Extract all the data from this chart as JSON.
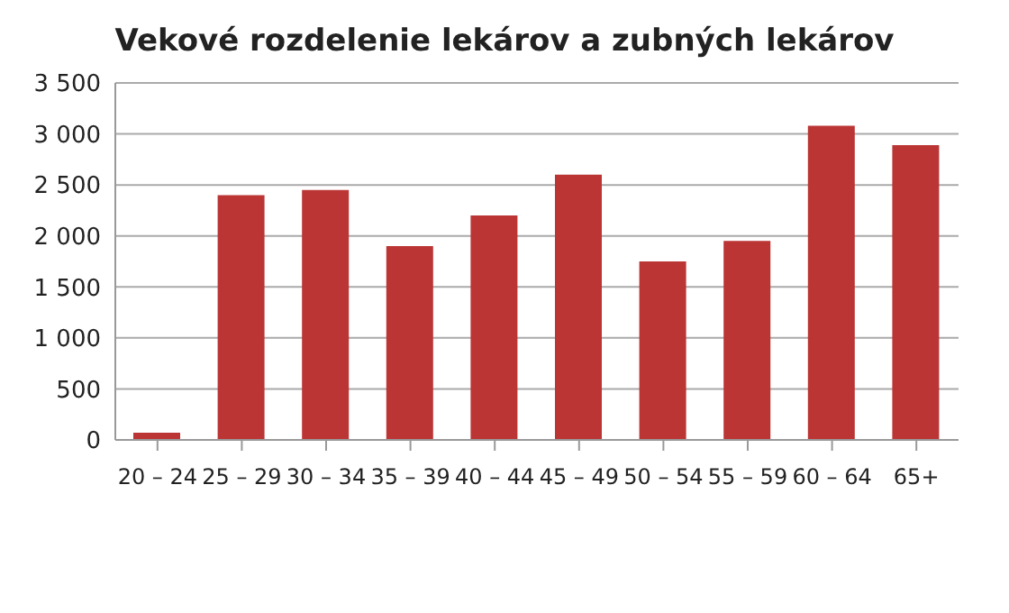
{
  "chart_data": {
    "type": "bar",
    "title": "Vekové rozdelenie lekárov a zubných lekárov",
    "categories": [
      "20 – 24",
      "25 – 29",
      "30 – 34",
      "35 – 39",
      "40 – 44",
      "45 – 49",
      "50 – 54",
      "55 – 59",
      "60 – 64",
      "65+"
    ],
    "values": [
      70,
      2400,
      2450,
      1900,
      2200,
      2600,
      1750,
      1950,
      3080,
      2890
    ],
    "color": "#bb3535",
    "ylim": [
      0,
      3500
    ],
    "yticks": [
      {
        "value": 0,
        "label": "0"
      },
      {
        "value": 500,
        "label": "500"
      },
      {
        "value": 1000,
        "label": "1 000"
      },
      {
        "value": 1500,
        "label": "1 500"
      },
      {
        "value": 2000,
        "label": "2 000"
      },
      {
        "value": 2500,
        "label": "2 500"
      },
      {
        "value": 3000,
        "label": "3 000"
      },
      {
        "value": 3500,
        "label": "3 500"
      }
    ],
    "grid": "y"
  }
}
